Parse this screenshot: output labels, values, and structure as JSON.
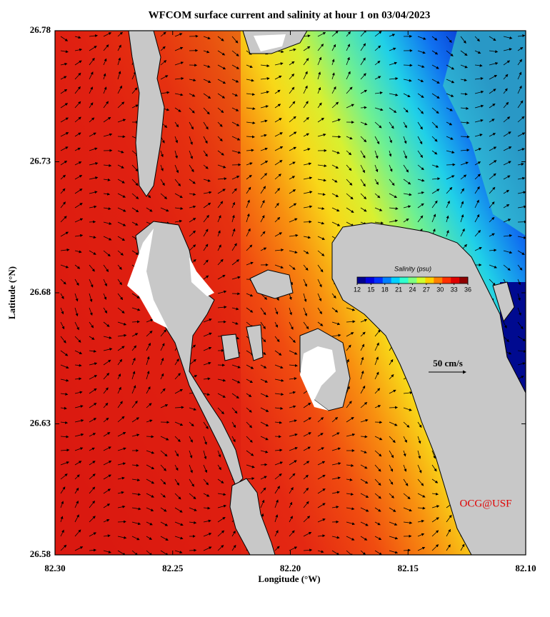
{
  "map": {
    "title": "WFCOM surface current and salinity at hour 1 on 03/04/2023",
    "xlabel": "Longitude (°W)",
    "ylabel": "Latitude (°N)",
    "xlim": [
      82.3,
      82.1
    ],
    "xticks": [
      {
        "value": 82.3,
        "label": "82.30"
      },
      {
        "value": 82.25,
        "label": "82.25"
      },
      {
        "value": 82.2,
        "label": "82.20"
      },
      {
        "value": 82.15,
        "label": "82.15"
      },
      {
        "value": 82.1,
        "label": "82.10"
      }
    ],
    "ylim": [
      26.58,
      26.78
    ],
    "yticks": [
      26.58,
      26.63,
      26.68,
      26.73,
      26.78
    ],
    "colorbar": {
      "title": "Salinity (psu)",
      "clim": [
        12,
        36
      ],
      "ticks": [
        12,
        15,
        18,
        21,
        24,
        27,
        30,
        33,
        36
      ],
      "colors": [
        "#00008f",
        "#0000df",
        "#0030ff",
        "#0080ff",
        "#00d0ff",
        "#30ffcf",
        "#80ff80",
        "#cfff30",
        "#ffd000",
        "#ff8000",
        "#ff3000",
        "#df0000",
        "#8f0000"
      ]
    },
    "scale_label": "50 cm/s",
    "credit": "OCG@USF"
  }
}
